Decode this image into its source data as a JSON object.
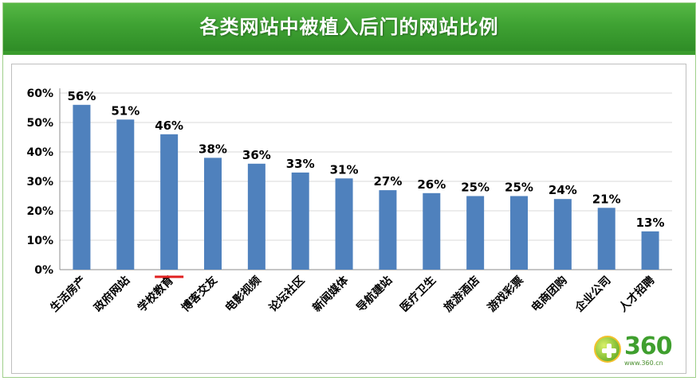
{
  "chart_data": {
    "type": "bar",
    "title": "各类网站中被植入后门的网站比例",
    "categories": [
      "生活房产",
      "政府网站",
      "学校教育",
      "博客交友",
      "电影视频",
      "论坛社区",
      "新闻媒体",
      "导航建站",
      "医疗卫生",
      "旅游酒店",
      "游戏彩票",
      "电商团购",
      "企业公司",
      "人才招聘"
    ],
    "values": [
      56,
      51,
      46,
      38,
      36,
      33,
      31,
      27,
      26,
      25,
      25,
      24,
      21,
      13
    ],
    "data_labels": [
      "56%",
      "51%",
      "46%",
      "38%",
      "36%",
      "33%",
      "31%",
      "27%",
      "26%",
      "25%",
      "25%",
      "24%",
      "21%",
      "13%"
    ],
    "y_ticks": [
      "0%",
      "10%",
      "20%",
      "30%",
      "40%",
      "50%",
      "60%"
    ],
    "ylim": [
      0,
      60
    ],
    "grid": true,
    "bar_color": "#4f81bd",
    "highlight_color": "#e02020",
    "highlight_category": "学校教育"
  },
  "logo": {
    "mark": "360",
    "url": "www.360.cn"
  }
}
